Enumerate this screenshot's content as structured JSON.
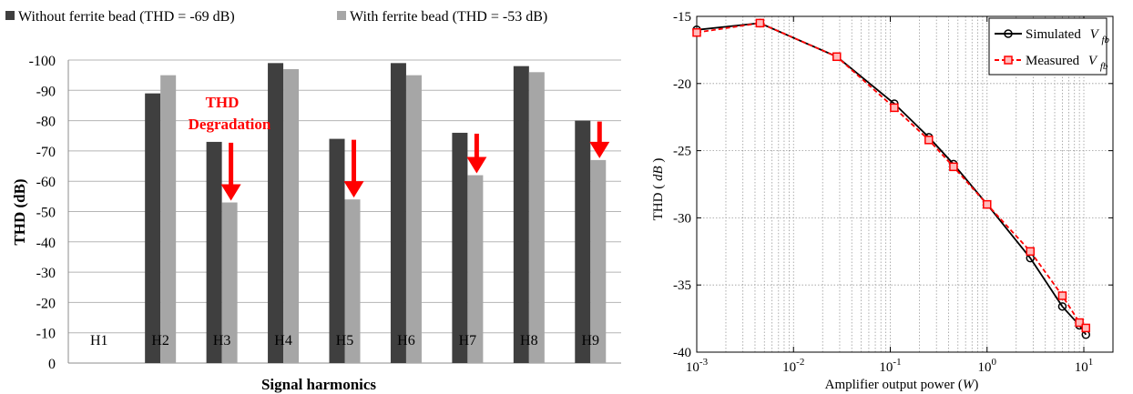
{
  "chart_data": [
    {
      "type": "bar",
      "title": "",
      "xlabel": "Signal harmonics",
      "ylabel": "THD (dB)",
      "categories": [
        "H1",
        "H2",
        "H3",
        "H4",
        "H5",
        "H6",
        "H7",
        "H8",
        "H9"
      ],
      "series": [
        {
          "name": "Without ferrite bead (THD = -69 dB)",
          "color": "#3f3f3f",
          "values": [
            null,
            -89,
            -73,
            -99,
            -74,
            -99,
            -76,
            -98,
            -80
          ]
        },
        {
          "name": "With ferrite bead (THD = -53 dB)",
          "color": "#a6a6a6",
          "values": [
            null,
            -95,
            -53,
            -97,
            -54,
            -95,
            -62,
            -96,
            -67
          ]
        }
      ],
      "ylim": [
        0,
        -100
      ],
      "yticks": [
        0,
        -10,
        -20,
        -30,
        -40,
        -50,
        -60,
        -70,
        -80,
        -90,
        -100
      ],
      "ytick_labels": [
        "0",
        "-10",
        "-20",
        "-30",
        "-40",
        "-50",
        "-60",
        "-70",
        "-80",
        "-90",
        "-100"
      ],
      "grid": true,
      "legend": "top",
      "annotation": {
        "line1": "THD",
        "line2": "Degradation",
        "color": "#ff0000",
        "arrows_at": [
          "H3",
          "H5",
          "H7",
          "H9"
        ]
      }
    },
    {
      "type": "line",
      "title": "",
      "xlabel": "Amplifier output power",
      "xlabel_unit": "W",
      "ylabel": "THD",
      "ylabel_unit": "dB",
      "xscale": "log",
      "xlim": [
        0.001,
        20
      ],
      "ylim": [
        -40,
        -15
      ],
      "yticks": [
        -40,
        -35,
        -30,
        -25,
        -20,
        -15
      ],
      "ytick_labels": [
        "-40",
        "-35",
        "-30",
        "-25",
        "-20",
        "-15"
      ],
      "xtick_bases": [
        "10",
        "10",
        "10",
        "10",
        "10"
      ],
      "xtick_exps": [
        "-3",
        "-2",
        "-1",
        "0",
        "1"
      ],
      "grid": true,
      "legend": "top-right",
      "series": [
        {
          "name": "Simulated",
          "sym": "V",
          "sub": "fb",
          "color": "#000000",
          "marker": "circle",
          "dash": "solid",
          "x": [
            0.001,
            0.0045,
            0.028,
            0.11,
            0.25,
            0.45,
            1.0,
            2.8,
            6.0,
            9.0,
            10.5
          ],
          "y": [
            -16.0,
            -15.5,
            -18.0,
            -21.5,
            -24.0,
            -26.0,
            -29.0,
            -33.0,
            -36.6,
            -38.0,
            -38.7
          ]
        },
        {
          "name": "Measured",
          "sym": "V",
          "sub": "fb",
          "color": "#ff0000",
          "marker": "square",
          "dash": "dashed",
          "x": [
            0.001,
            0.0045,
            0.028,
            0.11,
            0.25,
            0.45,
            1.0,
            2.8,
            6.0,
            9.0,
            10.5
          ],
          "y": [
            -16.2,
            -15.5,
            -18.0,
            -21.8,
            -24.2,
            -26.2,
            -29.0,
            -32.5,
            -35.8,
            -37.8,
            -38.2
          ]
        }
      ]
    }
  ]
}
